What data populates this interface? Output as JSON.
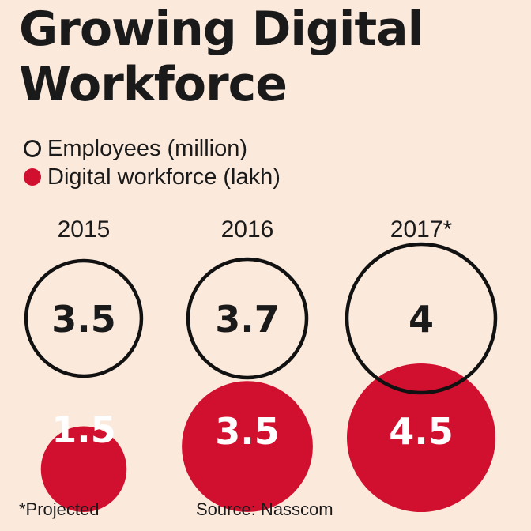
{
  "title_line1": "Growing Digital",
  "title_line2": "Workforce",
  "colors": {
    "background": "#fbe9dc",
    "digital": "#d0102e",
    "employees_outline": "#111111",
    "text": "#1a1a1a"
  },
  "legend": [
    {
      "label": "Employees (million)",
      "style": "outline-circle"
    },
    {
      "label": "Digital workforce (lakh)",
      "style": "filled-circle"
    }
  ],
  "chart_data": {
    "type": "bubble",
    "categories": [
      "2015",
      "2016",
      "2017*"
    ],
    "series": [
      {
        "name": "Employees (million)",
        "values": [
          3.5,
          3.7,
          4
        ],
        "labels": [
          "3.5",
          "3.7",
          "4"
        ]
      },
      {
        "name": "Digital workforce (lakh)",
        "values": [
          1.5,
          3.5,
          4.5
        ],
        "labels": [
          "1.5",
          "3.5",
          "4.5"
        ]
      }
    ]
  },
  "footnote": "*Projected",
  "source": "Source: Nasscom"
}
